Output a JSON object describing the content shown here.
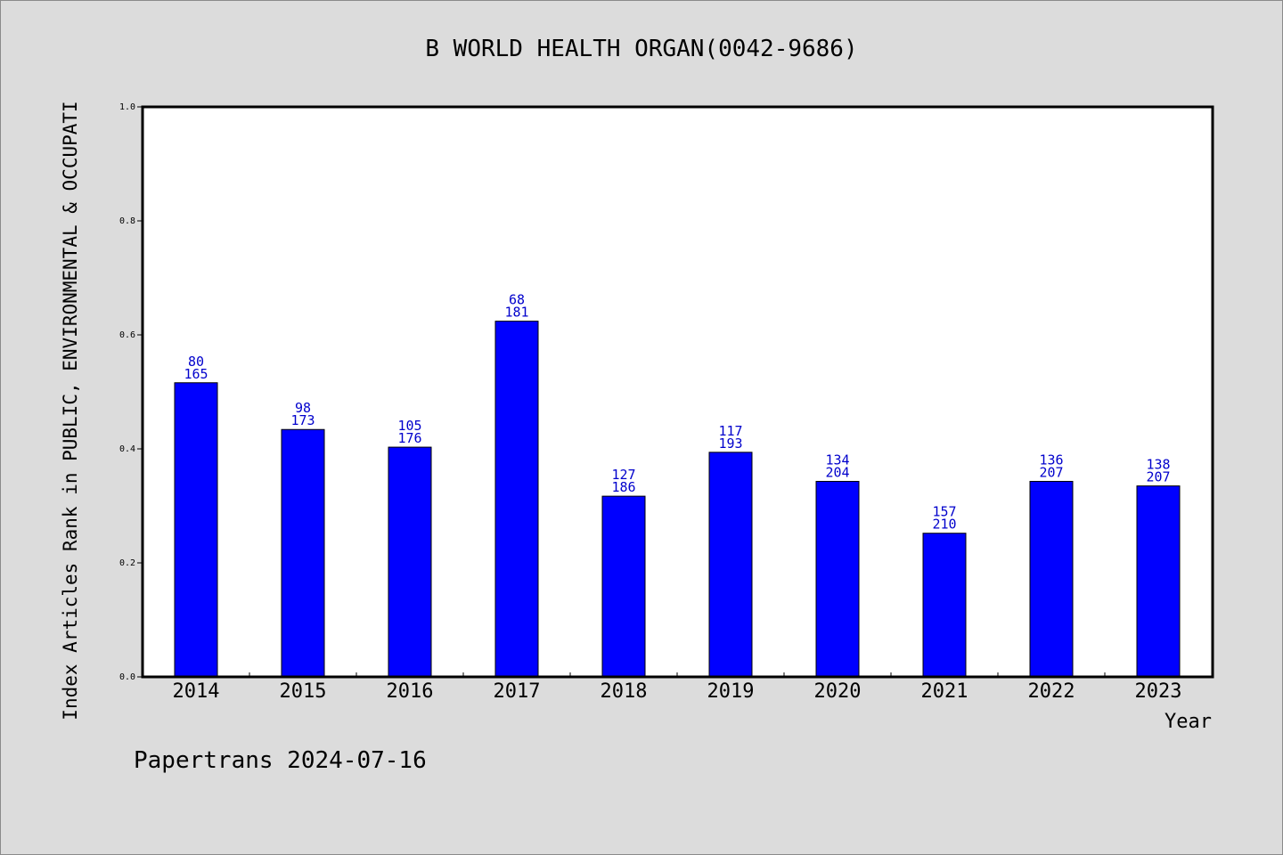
{
  "chart_data": {
    "type": "bar",
    "title": "B WORLD HEALTH ORGAN(0042-9686)",
    "xlabel": "Year",
    "ylabel": "Index Articles Rank in PUBLIC, ENVIRONMENTAL & OCCUPATI",
    "footer": "Papertrans 2024-07-16",
    "ylim": [
      0,
      1.0
    ],
    "yticks": [
      "0.0",
      "0.2",
      "0.4",
      "0.6",
      "0.8",
      "1.0"
    ],
    "categories": [
      "2014",
      "2015",
      "2016",
      "2017",
      "2018",
      "2019",
      "2020",
      "2021",
      "2022",
      "2023"
    ],
    "values": [
      0.516,
      0.434,
      0.403,
      0.624,
      0.317,
      0.394,
      0.343,
      0.252,
      0.343,
      0.335
    ],
    "ranks": [
      "80",
      "98",
      "105",
      "68",
      "127",
      "117",
      "134",
      "157",
      "136",
      "138"
    ],
    "totals": [
      "165",
      "173",
      "176",
      "181",
      "186",
      "193",
      "204",
      "210",
      "207",
      "207"
    ],
    "grid": false,
    "colors": {
      "bar": "#0000ff",
      "label": "#0000cc",
      "axis": "#000000",
      "plot_bg": "#ffffff",
      "page_bg": "#dcdcdc"
    }
  }
}
